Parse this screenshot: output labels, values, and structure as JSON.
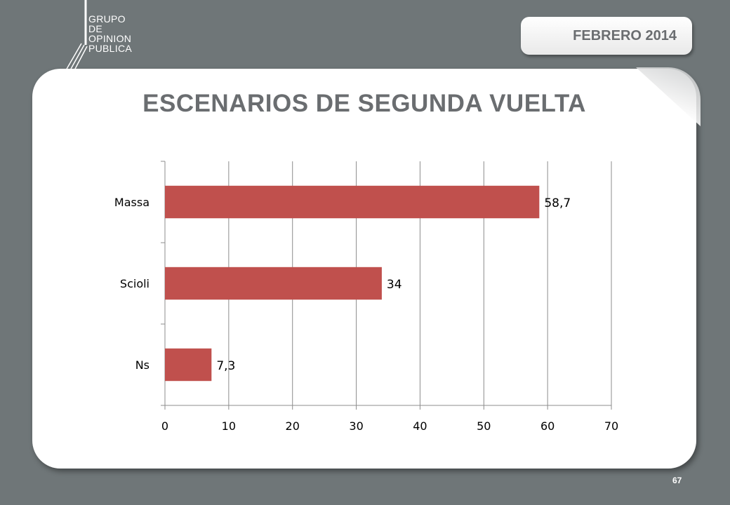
{
  "header": {
    "logo_lines": [
      "GRUPO",
      "DE",
      "OPINION",
      "PUBLICA"
    ],
    "date": "FEBRERO 2014"
  },
  "slide": {
    "title": "ESCENARIOS DE SEGUNDA VUELTA",
    "page_number": "67"
  },
  "colors": {
    "background": "#6f7678",
    "bar": "#c0504d",
    "title": "#6a6d70"
  },
  "chart_data": {
    "type": "bar",
    "orientation": "horizontal",
    "title": "",
    "xlabel": "",
    "ylabel": "",
    "categories": [
      "Massa",
      "Scioli",
      "Ns"
    ],
    "values": [
      58.7,
      34,
      7.3
    ],
    "value_labels": [
      "58,7",
      "34",
      "7,3"
    ],
    "xlim": [
      0,
      70
    ],
    "xticks": [
      0,
      10,
      20,
      30,
      40,
      50,
      60,
      70
    ],
    "grid": "vertical",
    "legend": "none"
  }
}
